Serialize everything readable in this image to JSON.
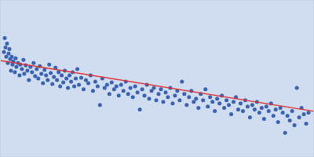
{
  "chart_data": {
    "type": "scatter",
    "xlim": [
      0,
      400
    ],
    "ylim": [
      0,
      200
    ],
    "xticks": [],
    "yticks": [],
    "tick_labels": false,
    "grid": false,
    "series": [
      {
        "type": "scatter",
        "color": "#3862b5",
        "marker": "circle",
        "x": [
          4,
          5,
          6,
          7,
          8,
          9,
          10,
          11,
          12,
          13,
          14,
          15,
          16,
          18,
          19,
          20,
          22,
          24,
          25,
          27,
          29,
          30,
          32,
          34,
          36,
          38,
          40,
          42,
          44,
          46,
          48,
          50,
          52,
          54,
          56,
          58,
          60,
          62,
          64,
          66,
          68,
          70,
          72,
          74,
          76,
          78,
          80,
          82,
          84,
          86,
          88,
          90,
          92,
          94,
          96,
          98,
          100,
          103,
          106,
          109,
          112,
          115,
          118,
          121,
          124,
          127,
          130,
          133,
          136,
          139,
          142,
          145,
          148,
          151,
          154,
          157,
          160,
          163,
          166,
          169,
          172,
          175,
          178,
          181,
          184,
          187,
          190,
          193,
          196,
          199,
          202,
          205,
          208,
          211,
          214,
          217,
          220,
          223,
          226,
          229,
          232,
          235,
          238,
          241,
          244,
          247,
          250,
          253,
          256,
          259,
          262,
          265,
          268,
          271,
          274,
          277,
          280,
          283,
          286,
          289,
          292,
          295,
          298,
          301,
          304,
          307,
          310,
          313,
          316,
          319,
          322,
          325,
          328,
          331,
          334,
          337,
          340,
          343,
          346,
          349,
          352,
          355,
          358,
          361,
          364,
          367,
          370,
          373,
          376,
          379,
          382,
          385,
          388,
          391,
          394
        ],
        "values": [
          134,
          152,
          140,
          128,
          145,
          120,
          132,
          138,
          125,
          110,
          128,
          118,
          122,
          108,
          126,
          115,
          120,
          104,
          118,
          112,
          124,
          106,
          117,
          110,
          98,
          115,
          108,
          120,
          103,
          112,
          100,
          116,
          106,
          94,
          111,
          104,
          98,
          118,
          107,
          93,
          102,
          114,
          98,
          108,
          90,
          104,
          95,
          110,
          100,
          88,
          104,
          96,
          108,
          90,
          100,
          112,
          92,
          101,
          86,
          98,
          94,
          104,
          84,
          96,
          90,
          66,
          100,
          88,
          92,
          80,
          95,
          86,
          90,
          78,
          92,
          84,
          96,
          80,
          88,
          76,
          90,
          82,
          60,
          86,
          78,
          92,
          74,
          84,
          88,
          72,
          80,
          86,
          70,
          82,
          76,
          88,
          68,
          78,
          84,
          72,
          96,
          80,
          66,
          76,
          84,
          70,
          74,
          62,
          80,
          72,
          86,
          64,
          76,
          70,
          58,
          74,
          68,
          78,
          62,
          72,
          66,
          54,
          70,
          76,
          60,
          68,
          58,
          72,
          64,
          50,
          66,
          60,
          70,
          56,
          62,
          48,
          64,
          58,
          68,
          52,
          60,
          44,
          62,
          56,
          30,
          52,
          46,
          58,
          40,
          88,
          50,
          62,
          54,
          42,
          56
        ]
      },
      {
        "type": "line",
        "color": "#e03030",
        "line_style": "solid",
        "x": [
          0,
          400
        ],
        "values": [
          123,
          58
        ]
      }
    ]
  }
}
